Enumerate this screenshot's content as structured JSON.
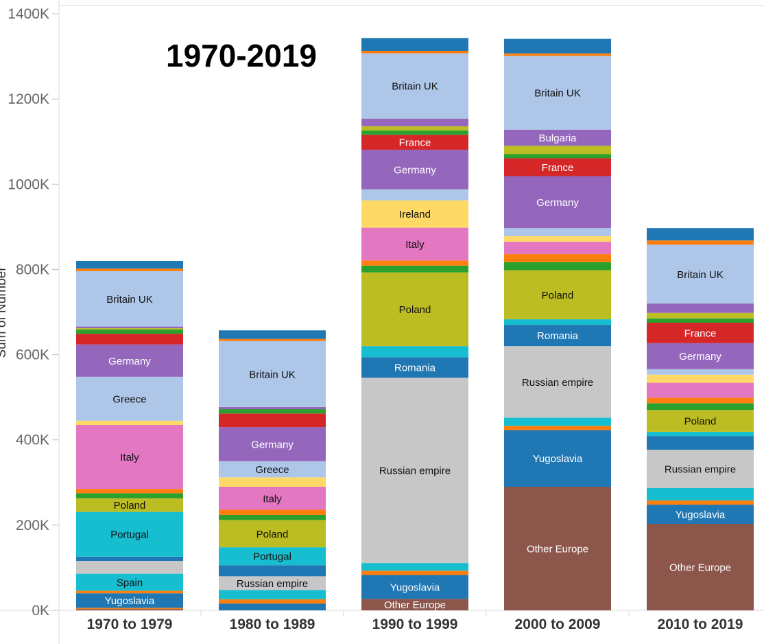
{
  "chart_data": {
    "type": "bar",
    "stacked": true,
    "title": "1970-2019",
    "ylabel": "Sum of Number",
    "ylim": [
      0,
      1400000
    ],
    "yticks": [
      "0K",
      "200K",
      "400K",
      "600K",
      "800K",
      "1000K",
      "1200K",
      "1400K"
    ],
    "grid": false,
    "legend": "none",
    "categories": [
      "1970 to 1979",
      "1980 to 1989",
      "1990 to 1999",
      "2000 to 2009",
      "2010 to 2019"
    ],
    "colors": {
      "Other Europe": "#8c564b",
      "Yugoslavia": "#1f77b4",
      "Spain": "#17becf",
      "Russian empire": "#c7c7c7",
      "Romania": "#1f77b4",
      "Portugal": "#17becf",
      "Poland": "#bcbd22",
      "Italy": "#e377c2",
      "Ireland": "#ffd966",
      "Greece": "#aec7e8",
      "Germany": "#9467bd",
      "France": "#d62728",
      "Bulgaria": "#9467bd",
      "Britain UK": "#aec7e8",
      "Orange": "#ff7f0e",
      "Green": "#2ca02c",
      "Blue": "#1f77b4",
      "Cyan": "#17becf",
      "Yellow": "#ffd966",
      "Olive": "#bcbd22",
      "Gray": "#c7c7c7",
      "Purple": "#9467bd",
      "LightBlue": "#aec7e8",
      "Pink": "#e377c2"
    },
    "stacks": [
      [
        {
          "name": "Other Europe",
          "value": 3000,
          "color": "Other Europe",
          "show_label": false
        },
        {
          "name": "Orange",
          "value": 3000,
          "color": "Orange",
          "show_label": false
        },
        {
          "name": "Yugoslavia",
          "value": 34000,
          "color": "Yugoslavia",
          "show_label": true
        },
        {
          "name": "Orange",
          "value": 6000,
          "color": "Orange",
          "show_label": false
        },
        {
          "name": "Spain",
          "value": 40000,
          "color": "Spain",
          "show_label": true
        },
        {
          "name": "Russian empire",
          "value": 30000,
          "color": "Russian empire",
          "show_label": false
        },
        {
          "name": "Blue",
          "value": 10000,
          "color": "Blue",
          "show_label": false
        },
        {
          "name": "Portugal",
          "value": 105000,
          "color": "Portugal",
          "show_label": true
        },
        {
          "name": "Poland",
          "value": 32000,
          "color": "Poland",
          "show_label": true
        },
        {
          "name": "Green",
          "value": 12000,
          "color": "Green",
          "show_label": false
        },
        {
          "name": "Orange",
          "value": 10000,
          "color": "Orange",
          "show_label": false
        },
        {
          "name": "Italy",
          "value": 150000,
          "color": "Italy",
          "show_label": true
        },
        {
          "name": "Yellow",
          "value": 10000,
          "color": "Yellow",
          "show_label": false
        },
        {
          "name": "Greece",
          "value": 103000,
          "color": "Greece",
          "show_label": true
        },
        {
          "name": "Germany",
          "value": 76000,
          "color": "Germany",
          "show_label": true
        },
        {
          "name": "France",
          "value": 25000,
          "color": "France",
          "show_label": false
        },
        {
          "name": "Green",
          "value": 10000,
          "color": "Green",
          "show_label": false
        },
        {
          "name": "Olive",
          "value": 3000,
          "color": "Olive",
          "show_label": false
        },
        {
          "name": "Purple",
          "value": 4000,
          "color": "Purple",
          "show_label": false
        },
        {
          "name": "Britain UK",
          "value": 130000,
          "color": "Britain UK",
          "show_label": true
        },
        {
          "name": "Orange",
          "value": 6000,
          "color": "Orange",
          "show_label": false
        },
        {
          "name": "Blue",
          "value": 18000,
          "color": "Blue",
          "show_label": false
        }
      ],
      [
        {
          "name": "Blue",
          "value": 16000,
          "color": "Blue",
          "show_label": false
        },
        {
          "name": "Orange",
          "value": 10000,
          "color": "Orange",
          "show_label": false
        },
        {
          "name": "Cyan",
          "value": 22000,
          "color": "Cyan",
          "show_label": false
        },
        {
          "name": "Russian empire",
          "value": 32000,
          "color": "Russian empire",
          "show_label": true
        },
        {
          "name": "Blue",
          "value": 26000,
          "color": "Blue",
          "show_label": false
        },
        {
          "name": "Portugal",
          "value": 42000,
          "color": "Portugal",
          "show_label": true
        },
        {
          "name": "Poland",
          "value": 64000,
          "color": "Poland",
          "show_label": true
        },
        {
          "name": "Green",
          "value": 12000,
          "color": "Green",
          "show_label": false
        },
        {
          "name": "Orange",
          "value": 12000,
          "color": "Orange",
          "show_label": false
        },
        {
          "name": "Italy",
          "value": 54000,
          "color": "Italy",
          "show_label": true
        },
        {
          "name": "Yellow",
          "value": 22000,
          "color": "Yellow",
          "show_label": false
        },
        {
          "name": "Greece",
          "value": 38000,
          "color": "Greece",
          "show_label": true
        },
        {
          "name": "Germany",
          "value": 80000,
          "color": "Germany",
          "show_label": true
        },
        {
          "name": "France",
          "value": 32000,
          "color": "France",
          "show_label": false
        },
        {
          "name": "Green",
          "value": 10000,
          "color": "Green",
          "show_label": false
        },
        {
          "name": "Purple",
          "value": 5000,
          "color": "Purple",
          "show_label": false
        },
        {
          "name": "Britain UK",
          "value": 155000,
          "color": "Britain UK",
          "show_label": true
        },
        {
          "name": "Orange",
          "value": 5000,
          "color": "Orange",
          "show_label": false
        },
        {
          "name": "Blue",
          "value": 20000,
          "color": "Blue",
          "show_label": false
        }
      ],
      [
        {
          "name": "Other Europe",
          "value": 27000,
          "color": "Other Europe",
          "show_label": true
        },
        {
          "name": "Yugoslavia",
          "value": 56000,
          "color": "Yugoslavia",
          "show_label": true
        },
        {
          "name": "Orange",
          "value": 10000,
          "color": "Orange",
          "show_label": false
        },
        {
          "name": "Cyan",
          "value": 18000,
          "color": "Cyan",
          "show_label": false
        },
        {
          "name": "Russian empire",
          "value": 435000,
          "color": "Russian empire",
          "show_label": true
        },
        {
          "name": "Romania",
          "value": 48000,
          "color": "Romania",
          "show_label": true
        },
        {
          "name": "Cyan",
          "value": 26000,
          "color": "Cyan",
          "show_label": false
        },
        {
          "name": "Poland",
          "value": 173000,
          "color": "Poland",
          "show_label": true
        },
        {
          "name": "Green",
          "value": 16000,
          "color": "Green",
          "show_label": false
        },
        {
          "name": "Orange",
          "value": 12000,
          "color": "Orange",
          "show_label": false
        },
        {
          "name": "Italy",
          "value": 77000,
          "color": "Italy",
          "show_label": true
        },
        {
          "name": "Ireland",
          "value": 64000,
          "color": "Ireland",
          "show_label": true
        },
        {
          "name": "LightBlue",
          "value": 26000,
          "color": "LightBlue",
          "show_label": false
        },
        {
          "name": "Germany",
          "value": 93000,
          "color": "Germany",
          "show_label": true
        },
        {
          "name": "France",
          "value": 35000,
          "color": "France",
          "show_label": true
        },
        {
          "name": "Green",
          "value": 10000,
          "color": "Green",
          "show_label": false
        },
        {
          "name": "Olive",
          "value": 10000,
          "color": "Olive",
          "show_label": false
        },
        {
          "name": "Purple",
          "value": 18000,
          "color": "Purple",
          "show_label": false
        },
        {
          "name": "Britain UK",
          "value": 153000,
          "color": "Britain UK",
          "show_label": true
        },
        {
          "name": "Orange",
          "value": 6000,
          "color": "Orange",
          "show_label": false
        },
        {
          "name": "Blue",
          "value": 30000,
          "color": "Blue",
          "show_label": false
        }
      ],
      [
        {
          "name": "Other Europe",
          "value": 290000,
          "color": "Other Europe",
          "show_label": true
        },
        {
          "name": "Yugoslavia",
          "value": 133000,
          "color": "Yugoslavia",
          "show_label": true
        },
        {
          "name": "Orange",
          "value": 10000,
          "color": "Orange",
          "show_label": false
        },
        {
          "name": "Cyan",
          "value": 19000,
          "color": "Cyan",
          "show_label": false
        },
        {
          "name": "Russian empire",
          "value": 168000,
          "color": "Russian empire",
          "show_label": true
        },
        {
          "name": "Romania",
          "value": 50000,
          "color": "Romania",
          "show_label": true
        },
        {
          "name": "Cyan",
          "value": 13000,
          "color": "Cyan",
          "show_label": false
        },
        {
          "name": "Poland",
          "value": 115000,
          "color": "Poland",
          "show_label": true
        },
        {
          "name": "Green",
          "value": 19000,
          "color": "Green",
          "show_label": false
        },
        {
          "name": "Orange",
          "value": 19000,
          "color": "Orange",
          "show_label": false
        },
        {
          "name": "Italy",
          "value": 29000,
          "color": "Italy",
          "show_label": false
        },
        {
          "name": "Yellow",
          "value": 13000,
          "color": "Yellow",
          "show_label": false
        },
        {
          "name": "LightBlue",
          "value": 19000,
          "color": "LightBlue",
          "show_label": false
        },
        {
          "name": "Germany",
          "value": 122000,
          "color": "Germany",
          "show_label": true
        },
        {
          "name": "France",
          "value": 42000,
          "color": "France",
          "show_label": true
        },
        {
          "name": "Green",
          "value": 10000,
          "color": "Green",
          "show_label": false
        },
        {
          "name": "Olive",
          "value": 19000,
          "color": "Olive",
          "show_label": false
        },
        {
          "name": "Bulgaria",
          "value": 38000,
          "color": "Bulgaria",
          "show_label": true
        },
        {
          "name": "Britain UK",
          "value": 173000,
          "color": "Britain UK",
          "show_label": true
        },
        {
          "name": "Orange",
          "value": 6000,
          "color": "Orange",
          "show_label": false
        },
        {
          "name": "Blue",
          "value": 34000,
          "color": "Blue",
          "show_label": false
        }
      ],
      [
        {
          "name": "Other Europe",
          "value": 203000,
          "color": "Other Europe",
          "show_label": true
        },
        {
          "name": "Yugoslavia",
          "value": 45000,
          "color": "Yugoslavia",
          "show_label": true
        },
        {
          "name": "Orange",
          "value": 10000,
          "color": "Orange",
          "show_label": false
        },
        {
          "name": "Cyan",
          "value": 29000,
          "color": "Cyan",
          "show_label": false
        },
        {
          "name": "Russian empire",
          "value": 90000,
          "color": "Russian empire",
          "show_label": true
        },
        {
          "name": "Blue",
          "value": 32000,
          "color": "Blue",
          "show_label": false
        },
        {
          "name": "Cyan",
          "value": 10000,
          "color": "Cyan",
          "show_label": false
        },
        {
          "name": "Poland",
          "value": 51000,
          "color": "Poland",
          "show_label": true
        },
        {
          "name": "Green",
          "value": 16000,
          "color": "Green",
          "show_label": false
        },
        {
          "name": "Orange",
          "value": 13000,
          "color": "Orange",
          "show_label": false
        },
        {
          "name": "Italy",
          "value": 35000,
          "color": "Italy",
          "show_label": false
        },
        {
          "name": "Yellow",
          "value": 19000,
          "color": "Yellow",
          "show_label": false
        },
        {
          "name": "LightBlue",
          "value": 13000,
          "color": "LightBlue",
          "show_label": false
        },
        {
          "name": "Germany",
          "value": 61000,
          "color": "Germany",
          "show_label": true
        },
        {
          "name": "France",
          "value": 48000,
          "color": "France",
          "show_label": true
        },
        {
          "name": "Green",
          "value": 10000,
          "color": "Green",
          "show_label": false
        },
        {
          "name": "Olive",
          "value": 13000,
          "color": "Olive",
          "show_label": false
        },
        {
          "name": "Purple",
          "value": 22000,
          "color": "Purple",
          "show_label": false
        },
        {
          "name": "Britain UK",
          "value": 138000,
          "color": "Britain UK",
          "show_label": true
        },
        {
          "name": "Orange",
          "value": 10000,
          "color": "Orange",
          "show_label": false
        },
        {
          "name": "Blue",
          "value": 29000,
          "color": "Blue",
          "show_label": false
        }
      ]
    ]
  }
}
